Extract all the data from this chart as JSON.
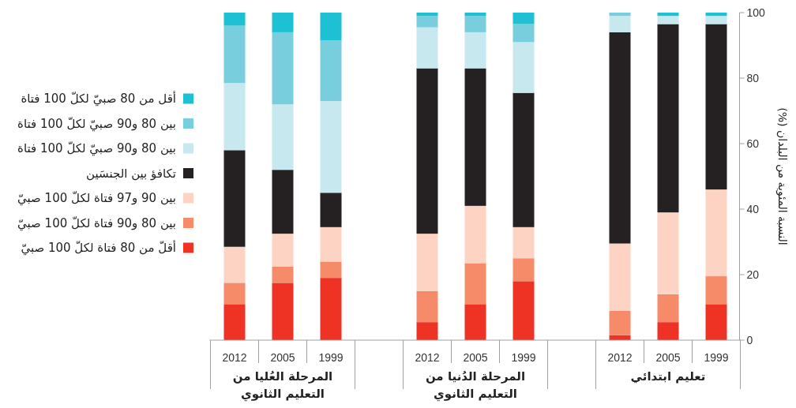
{
  "chart_data": {
    "type": "bar",
    "stacked": true,
    "ylabel": "النسبة المئوية من البلدان (%)",
    "categories": [
      "2012",
      "2005",
      "1999",
      null,
      "2012",
      "2005",
      "1999",
      null,
      "2012",
      "2005",
      "1999"
    ],
    "series": [
      {
        "name": "أقلّ من 80 فتاة لكلّ 100 صبيّ",
        "color": "#ee3224",
        "values": [
          11,
          17.5,
          19,
          null,
          5.5,
          11,
          18,
          null,
          1.5,
          5.5,
          11
        ]
      },
      {
        "name": "بين 80 و90 فتاة لكلّ 100 صبيّ",
        "color": "#f58b68",
        "values": [
          6.5,
          5,
          5,
          null,
          9.5,
          12.5,
          7,
          null,
          7.5,
          8.5,
          8.5
        ]
      },
      {
        "name": "بين 90 و97 فتاة لكلّ 100 صبيّ",
        "color": "#fdd3c3",
        "values": [
          11,
          10,
          10.5,
          null,
          17.5,
          17.5,
          9.5,
          null,
          20.5,
          25,
          26.5
        ]
      },
      {
        "name": "تكافؤ بين الجنسَين",
        "color": "#252122",
        "values": [
          29.5,
          19.5,
          10.5,
          null,
          50.5,
          42,
          41,
          null,
          64.5,
          57.5,
          50.5
        ]
      },
      {
        "name": "بين 80 و90 صبيّ لكلّ 100 فتاة",
        "color": "#c6e8ee",
        "values": [
          20.5,
          20,
          28,
          null,
          12.5,
          11,
          15.5,
          null,
          5,
          2.5,
          2.5
        ]
      },
      {
        "name": "بين 80 و90 صبيّ لكلّ 100 فتاة",
        "color": "#78cedd",
        "values": [
          17.5,
          22,
          18.5,
          null,
          3.5,
          5,
          5.5,
          null,
          1,
          0,
          0
        ]
      },
      {
        "name": "أقل من 80 صبيّ لكلّ 100 فتاة",
        "color": "#1dc1d3",
        "values": [
          4,
          6,
          8.5,
          null,
          1,
          1,
          3.5,
          null,
          0,
          1,
          1
        ]
      }
    ],
    "ylim": [
      0,
      100
    ],
    "yticks": [
      0,
      20,
      40,
      60,
      80,
      100
    ],
    "legend": "left",
    "annotations": [
      "المرحلة العُليا من التعليم الثانوي",
      "المرحلة الدُنيا من التعليم الثانوي",
      "تعليم ابتدائي"
    ]
  }
}
